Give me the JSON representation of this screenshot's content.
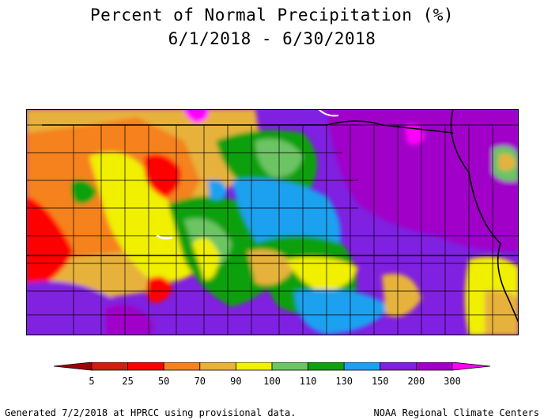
{
  "title": {
    "line1": "Percent of Normal Precipitation (%)",
    "line2": "6/1/2018 - 6/30/2018"
  },
  "legend": {
    "stops": [
      {
        "label": "5",
        "color": "#d01f10"
      },
      {
        "label": "25",
        "color": "#ff0000"
      },
      {
        "label": "50",
        "color": "#f5821f"
      },
      {
        "label": "70",
        "color": "#e7b23a"
      },
      {
        "label": "90",
        "color": "#f0f000"
      },
      {
        "label": "100",
        "color": "#6cc464"
      },
      {
        "label": "110",
        "color": "#10a010"
      },
      {
        "label": "130",
        "color": "#1ea0f0"
      },
      {
        "label": "150",
        "color": "#8020e0"
      },
      {
        "label": "200",
        "color": "#a000c8"
      },
      {
        "label": "300",
        "color": "#ff00ff"
      }
    ],
    "low_color": "#a00000"
  },
  "footer": {
    "left": "Generated 7/2/2018 at HPRCC using provisional data.",
    "right": "NOAA Regional Climate Centers"
  }
}
